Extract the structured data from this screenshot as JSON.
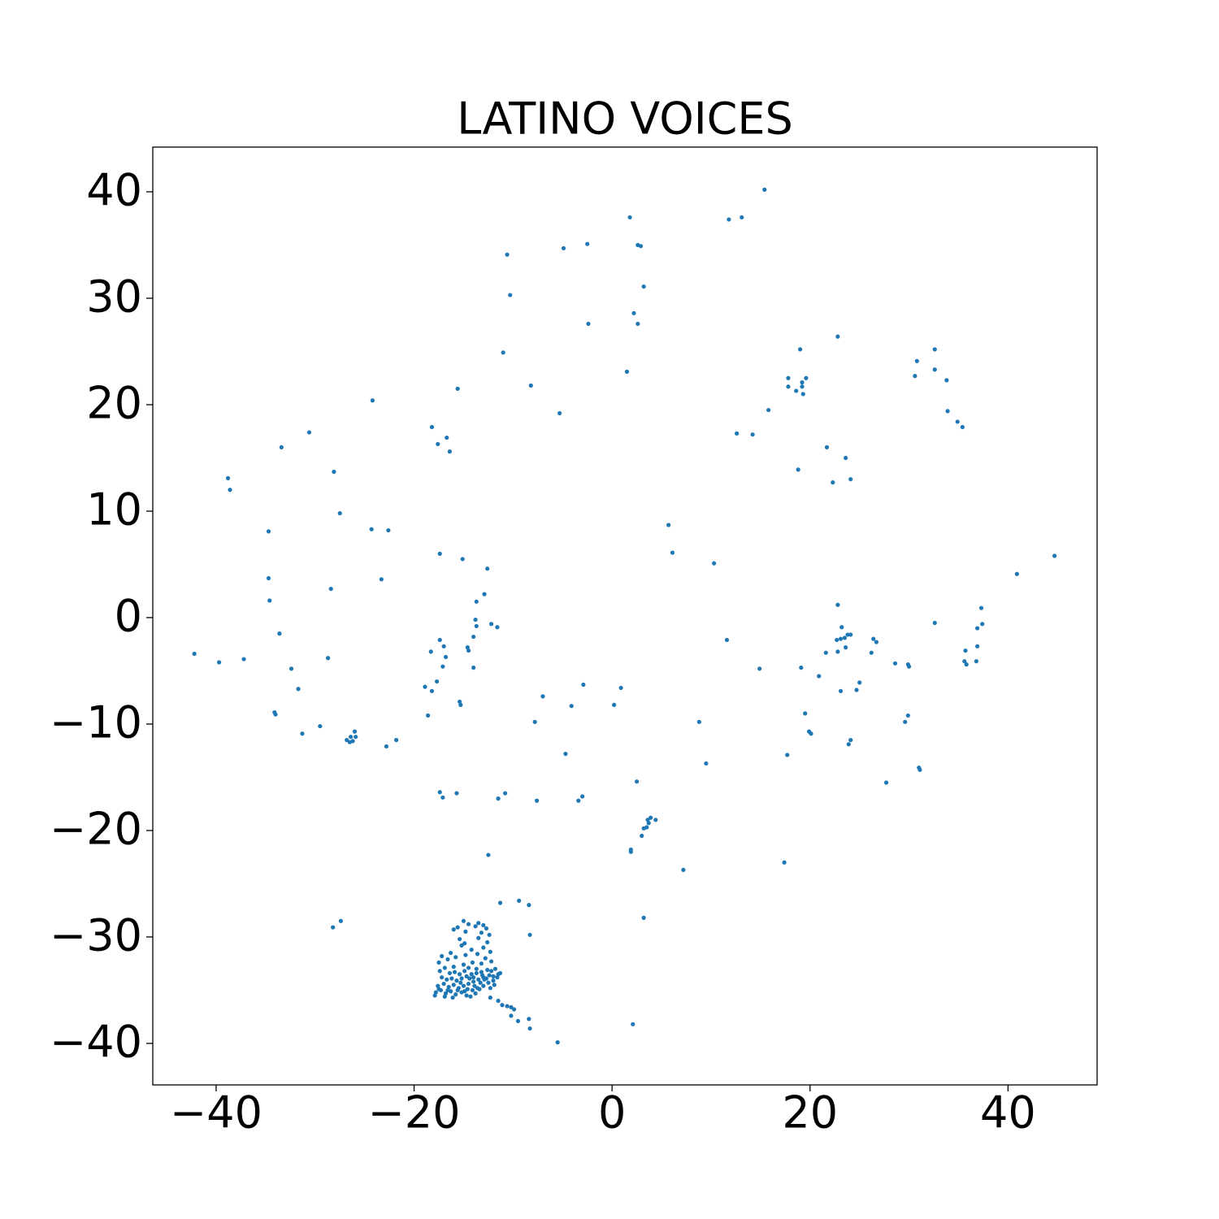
{
  "chart_data": {
    "type": "scatter",
    "title": "LATINO VOICES",
    "color": "#1f77b4",
    "xlim": [
      -46.4,
      49.0
    ],
    "ylim": [
      -43.9,
      44.2
    ],
    "xticks": [
      {
        "value": -40,
        "label": "−40"
      },
      {
        "value": -20,
        "label": "−20"
      },
      0,
      20,
      40
    ],
    "yticks": [
      {
        "value": -40,
        "label": "−40"
      },
      {
        "value": -30,
        "label": "−30"
      },
      {
        "value": -20,
        "label": "−20"
      },
      {
        "value": -10,
        "label": "−10"
      },
      0,
      10,
      20,
      30,
      40
    ],
    "x": [
      -42.2,
      -39.7,
      -37.2,
      -38.8,
      -38.6,
      -33.4,
      -30.6,
      -28.1,
      -27.5,
      -24.2,
      -34.7,
      -24.3,
      -22.6,
      -34.7,
      -34.6,
      -33.6,
      -32.4,
      -31.7,
      -28.7,
      -28.4,
      -23.3,
      -34.1,
      -34.0,
      -31.3,
      -29.5,
      -26.8,
      -26.4,
      -26.0,
      -25.9,
      -26.2,
      -26.5,
      -22.8,
      -21.8,
      -18.2,
      -17.6,
      -16.7,
      -16.4,
      -15.6,
      -17.4,
      -15.1,
      -12.6,
      -12.9,
      -13.7,
      -13.8,
      -13.7,
      -12.2,
      -11.6,
      -14.0,
      -14.6,
      -14.5,
      -14.0,
      -17.4,
      -17.0,
      -18.3,
      -16.8,
      -17.1,
      -17.7,
      -18.9,
      -18.2,
      -18.6,
      -15.4,
      -15.3,
      -17.4,
      -17.1,
      -15.7,
      -11.5,
      -10.8,
      -7.6,
      -3.4,
      -3.0,
      -12.5,
      -10.6,
      -10.3,
      -11.0,
      -8.2,
      -5.3,
      -4.9,
      -2.5,
      -2.4,
      1.8,
      2.6,
      2.9,
      3.2,
      2.2,
      2.6,
      1.5,
      11.8,
      13.1,
      15.4,
      -7.0,
      -7.8,
      -4.1,
      -2.9,
      0.9,
      0.2,
      -4.7,
      5.7,
      6.1,
      10.3,
      11.6,
      14.9,
      8.8,
      9.5,
      2.5,
      1.9,
      1.9,
      3.0,
      3.2,
      3.5,
      3.6,
      3.9,
      4.4,
      3.7,
      7.2,
      3.2,
      2.1,
      -5.5,
      -28.2,
      -27.4,
      12.6,
      14.2,
      15.8,
      17.8,
      17.8,
      18.6,
      19.2,
      19.2,
      19.6,
      19.3,
      19.0,
      22.8,
      21.7,
      23.6,
      24.1,
      22.3,
      18.8,
      30.8,
      30.6,
      32.6,
      32.6,
      33.8,
      33.9,
      34.9,
      35.4,
      22.8,
      23.2,
      23.5,
      23.1,
      23.8,
      22.7,
      22.8,
      24.1,
      23.6,
      21.6,
      23.1,
      20.9,
      19.1,
      19.5,
      19.9,
      20.1,
      17.7,
      17.4,
      24.1,
      23.9,
      25.0,
      24.7,
      26.4,
      26.7,
      26.2,
      28.6,
      29.9,
      30.0,
      29.9,
      29.6,
      31.0,
      31.1,
      27.7,
      32.6,
      35.7,
      35.6,
      35.8,
      36.9,
      36.8,
      37.3,
      37.4,
      36.9,
      40.9,
      44.7,
      -15.0,
      -14.5,
      -13.5,
      -13.0,
      -12.7,
      -13.8,
      -15.6,
      -16.0,
      -14.8,
      -12.4,
      -13.2,
      -15.4,
      -14.9,
      -13.5,
      -12.6,
      -13.0,
      -15.2,
      -14.2,
      -12.3,
      -16.3,
      -17.2,
      -17.5,
      -16.6,
      -15.8,
      -14.8,
      -13.6,
      -12.8,
      -12.2,
      -13.2,
      -14.1,
      -15.0,
      -16.0,
      -16.9,
      -17.4,
      -14.5,
      -13.7,
      -12.6,
      -11.8,
      -11.5,
      -12.0,
      -17.8,
      -17.3,
      -16.8,
      -16.3,
      -15.8,
      -15.2,
      -14.7,
      -14.1,
      -13.6,
      -13.0,
      -12.5,
      -12.0,
      -11.6,
      -17.6,
      -17.0,
      -16.5,
      -16.0,
      -15.5,
      -15.0,
      -14.5,
      -14.0,
      -13.5,
      -13.0,
      -12.4,
      -17.2,
      -16.7,
      -16.2,
      -15.7,
      -15.2,
      -14.7,
      -14.2,
      -13.7,
      -13.2,
      -16.4,
      -15.9,
      -15.4,
      -14.9,
      -14.4,
      -13.9,
      -13.4,
      -12.9,
      -12.3,
      -11.9,
      -16.9,
      -16.1,
      -15.6,
      -14.9,
      -14.3,
      -13.8,
      -13.3,
      -17.9,
      -17.5,
      -16.6,
      -15.3,
      -14.6,
      -14.0,
      -13.1,
      -12.7,
      -12.2,
      -11.3,
      -11.5,
      -11.1,
      -10.6,
      -10.2,
      -9.9,
      -10.2,
      -9.5,
      -8.4,
      -8.3,
      -11.3,
      -8.4,
      -9.4,
      -8.3,
      -12.3
    ],
    "y": [
      -3.4,
      -4.2,
      -3.9,
      13.1,
      12.0,
      16.0,
      17.4,
      13.7,
      9.8,
      20.4,
      8.1,
      8.3,
      8.2,
      3.7,
      1.6,
      -1.5,
      -4.8,
      -6.7,
      -3.8,
      2.7,
      3.6,
      -8.9,
      -9.1,
      -10.9,
      -10.2,
      -11.5,
      -11.2,
      -10.7,
      -11.2,
      -11.6,
      -11.7,
      -12.1,
      -11.5,
      17.9,
      16.3,
      16.9,
      15.6,
      21.5,
      6.0,
      5.5,
      4.6,
      2.2,
      1.5,
      -0.2,
      -0.8,
      -0.6,
      -0.9,
      -1.8,
      -2.8,
      -3.1,
      -4.7,
      -2.1,
      -2.7,
      -3.2,
      -3.7,
      -4.6,
      -6.0,
      -6.5,
      -6.9,
      -9.2,
      -7.9,
      -8.2,
      -16.4,
      -16.9,
      -16.5,
      -17.0,
      -16.5,
      -17.2,
      -17.2,
      -16.8,
      -22.3,
      34.1,
      30.3,
      24.9,
      21.8,
      19.2,
      34.7,
      35.1,
      27.6,
      37.6,
      35.0,
      34.9,
      31.1,
      28.6,
      27.6,
      23.1,
      37.4,
      37.6,
      40.2,
      -7.4,
      -9.8,
      -8.3,
      -6.3,
      -6.6,
      -8.2,
      -12.8,
      8.7,
      6.1,
      5.1,
      -2.1,
      -4.8,
      -9.8,
      -13.7,
      -15.4,
      -21.8,
      -22.0,
      -20.5,
      -19.8,
      -19.7,
      -19.0,
      -18.8,
      -19.0,
      -19.3,
      -23.7,
      -28.2,
      -38.2,
      -39.9,
      -29.1,
      -28.5,
      17.3,
      17.2,
      19.5,
      22.5,
      21.7,
      21.3,
      22.1,
      21.7,
      22.5,
      21.0,
      25.2,
      26.4,
      16.0,
      15.0,
      13.0,
      12.7,
      13.9,
      24.1,
      22.7,
      25.2,
      23.3,
      22.3,
      19.4,
      18.4,
      17.9,
      1.2,
      -0.9,
      -1.9,
      -2.0,
      -1.6,
      -2.1,
      -3.2,
      -1.6,
      -2.8,
      -3.3,
      -6.9,
      -5.5,
      -4.7,
      -9.0,
      -10.7,
      -10.9,
      -12.9,
      -23.0,
      -11.5,
      -11.9,
      -6.1,
      -6.8,
      -2.0,
      -2.3,
      -3.3,
      -4.3,
      -4.4,
      -4.6,
      -9.2,
      -9.8,
      -14.1,
      -14.3,
      -15.5,
      -0.5,
      -3.1,
      -4.1,
      -4.4,
      -2.7,
      -4.1,
      0.9,
      -0.6,
      -1.0,
      4.1,
      5.8,
      -28.5,
      -28.8,
      -28.7,
      -28.9,
      -29.2,
      -29.0,
      -29.1,
      -29.3,
      -29.5,
      -29.8,
      -29.6,
      -30.2,
      -30.6,
      -30.1,
      -30.5,
      -31.0,
      -30.8,
      -31.2,
      -31.4,
      -31.5,
      -31.8,
      -32.4,
      -32.1,
      -31.9,
      -31.7,
      -31.6,
      -32.0,
      -32.3,
      -32.5,
      -32.4,
      -32.6,
      -32.8,
      -32.9,
      -33.2,
      -32.9,
      -33.0,
      -33.1,
      -33.0,
      -33.5,
      -33.7,
      -35.2,
      -35.0,
      -35.3,
      -35.1,
      -35.4,
      -35.2,
      -35.5,
      -35.0,
      -34.8,
      -34.6,
      -34.3,
      -34.1,
      -33.8,
      -34.6,
      -34.4,
      -34.7,
      -34.5,
      -34.8,
      -34.6,
      -34.4,
      -34.2,
      -34.0,
      -33.8,
      -33.6,
      -33.8,
      -34.0,
      -33.9,
      -34.1,
      -33.9,
      -33.7,
      -33.5,
      -33.4,
      -33.3,
      -33.4,
      -33.3,
      -33.5,
      -33.2,
      -33.9,
      -34.6,
      -34.9,
      -34.0,
      -34.8,
      -34.5,
      -35.6,
      -35.7,
      -35.0,
      -35.1,
      -35.6,
      -35.3,
      -34.3,
      -35.5,
      -34.9,
      -35.0,
      -34.3,
      -34.9,
      -33.8,
      -33.6,
      -33.9,
      -33.2,
      -33.4,
      -36.0,
      -36.4,
      -36.5,
      -36.6,
      -36.8,
      -37.4,
      -37.9,
      -37.7,
      -38.6,
      -26.8,
      -27.0,
      -26.6,
      -29.8,
      -35.7
    ]
  }
}
